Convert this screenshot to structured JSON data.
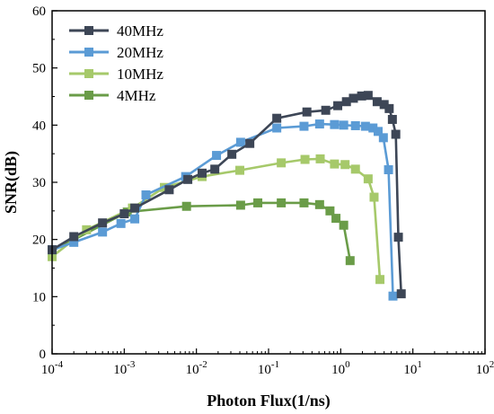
{
  "chart_data": {
    "type": "line",
    "title": "",
    "xlabel": "Photon Flux(1/ns)",
    "ylabel": "SNR(dB)",
    "x_scale": "log",
    "xlim": [
      0.0001,
      100
    ],
    "ylim": [
      0,
      60
    ],
    "x_ticks": [
      0.0001,
      0.001,
      0.01,
      0.1,
      1,
      10,
      100
    ],
    "x_tick_labels": [
      {
        "base": "10",
        "exp": "-4"
      },
      {
        "base": "10",
        "exp": "-3"
      },
      {
        "base": "10",
        "exp": "-2"
      },
      {
        "base": "10",
        "exp": "-1"
      },
      {
        "base": "10",
        "exp": "0"
      },
      {
        "base": "10",
        "exp": "1"
      },
      {
        "base": "10",
        "exp": "2"
      }
    ],
    "y_ticks": [
      0,
      10,
      20,
      30,
      40,
      50,
      60
    ],
    "y_tick_labels": [
      "0",
      "10",
      "20",
      "30",
      "40",
      "50",
      "60"
    ],
    "grid": false,
    "legend_position": "top-left",
    "series": [
      {
        "name": "40MHz",
        "color": "#3d4656",
        "points": [
          [
            0.0001,
            18.2
          ],
          [
            0.0002,
            20.5
          ],
          [
            0.0005,
            22.9
          ],
          [
            0.001,
            24.5
          ],
          [
            0.0014,
            25.5
          ],
          [
            0.0042,
            28.7
          ],
          [
            0.0076,
            30.5
          ],
          [
            0.012,
            31.6
          ],
          [
            0.018,
            32.3
          ],
          [
            0.031,
            34.9
          ],
          [
            0.055,
            36.8
          ],
          [
            0.13,
            41.2
          ],
          [
            0.34,
            42.3
          ],
          [
            0.62,
            42.6
          ],
          [
            0.91,
            43.4
          ],
          [
            1.2,
            44.1
          ],
          [
            1.5,
            44.7
          ],
          [
            1.95,
            45.1
          ],
          [
            2.4,
            45.2
          ],
          [
            3.2,
            44.1
          ],
          [
            4.0,
            43.6
          ],
          [
            4.7,
            42.9
          ],
          [
            5.2,
            41.0
          ],
          [
            5.8,
            38.4
          ],
          [
            6.3,
            20.4
          ],
          [
            6.9,
            10.5
          ]
        ]
      },
      {
        "name": "20MHz",
        "color": "#5b9bd5",
        "points": [
          [
            0.0001,
            18.2
          ],
          [
            0.0002,
            19.5
          ],
          [
            0.0005,
            21.3
          ],
          [
            0.0009,
            22.8
          ],
          [
            0.0014,
            23.6
          ],
          [
            0.002,
            27.8
          ],
          [
            0.0071,
            31.0
          ],
          [
            0.019,
            34.7
          ],
          [
            0.041,
            37.0
          ],
          [
            0.13,
            39.5
          ],
          [
            0.31,
            39.8
          ],
          [
            0.51,
            40.2
          ],
          [
            0.82,
            40.1
          ],
          [
            1.1,
            40.0
          ],
          [
            1.6,
            39.9
          ],
          [
            2.2,
            39.8
          ],
          [
            2.8,
            39.5
          ],
          [
            3.3,
            38.9
          ],
          [
            3.9,
            37.8
          ],
          [
            4.6,
            32.2
          ],
          [
            5.3,
            10.1
          ]
        ]
      },
      {
        "name": "10MHz",
        "color": "#a6c96a",
        "points": [
          [
            0.0001,
            17.0
          ],
          [
            0.0003,
            21.7
          ],
          [
            0.0013,
            25.5
          ],
          [
            0.0036,
            29.1
          ],
          [
            0.012,
            31.0
          ],
          [
            0.04,
            32.1
          ],
          [
            0.15,
            33.4
          ],
          [
            0.32,
            34.0
          ],
          [
            0.52,
            34.1
          ],
          [
            0.82,
            33.2
          ],
          [
            1.15,
            33.1
          ],
          [
            1.6,
            32.3
          ],
          [
            2.4,
            30.6
          ],
          [
            2.9,
            27.4
          ],
          [
            3.5,
            13.0
          ]
        ]
      },
      {
        "name": "4MHz",
        "color": "#6a9c48",
        "points": [
          [
            0.0001,
            18.0
          ],
          [
            0.0011,
            24.8
          ],
          [
            0.0073,
            25.8
          ],
          [
            0.041,
            26.0
          ],
          [
            0.071,
            26.4
          ],
          [
            0.15,
            26.4
          ],
          [
            0.31,
            26.4
          ],
          [
            0.51,
            26.1
          ],
          [
            0.71,
            25.0
          ],
          [
            0.86,
            23.7
          ],
          [
            1.1,
            22.5
          ],
          [
            1.35,
            16.3
          ]
        ]
      }
    ]
  }
}
